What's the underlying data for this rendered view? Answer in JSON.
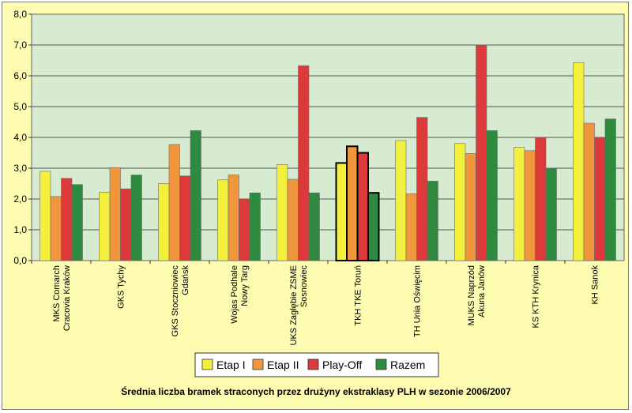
{
  "chart_data": {
    "type": "bar",
    "title": "Średnia liczba bramek straconych przez drużyny ekstraklasy PLH w sezonie 2006/2007",
    "ylim": [
      0,
      8
    ],
    "ytick_labels": [
      "0,0",
      "1,0",
      "2,0",
      "3,0",
      "4,0",
      "5,0",
      "6,0",
      "7,0",
      "8,0"
    ],
    "grid": true,
    "legend_position": "bottom",
    "categories": [
      [
        "MKS Comarch",
        "Cracovia Kraków"
      ],
      [
        "GKS Tychy"
      ],
      [
        "GKS Stoczniowiec",
        "Gdańsk"
      ],
      [
        "Wojas Podhale",
        "Nowy Targ"
      ],
      [
        "UKS Zagłębie ZSME",
        "Sosnowiec"
      ],
      [
        "TKH TKE Toruń"
      ],
      [
        "TH Unia Oświęcim"
      ],
      [
        "MUKS Naprzód",
        "Akuna Janów"
      ],
      [
        "KS KTH Krynica"
      ],
      [
        "KH Sanok"
      ]
    ],
    "highlight_index": 5,
    "series": [
      {
        "name": "Etap I",
        "color": "#f2f03c",
        "values": [
          2.9,
          2.22,
          2.5,
          2.62,
          3.12,
          3.17,
          3.9,
          3.8,
          3.68,
          6.43
        ]
      },
      {
        "name": "Etap II",
        "color": "#f0963c",
        "values": [
          2.08,
          3.02,
          3.77,
          2.78,
          2.64,
          3.71,
          2.17,
          3.48,
          3.57,
          4.46
        ]
      },
      {
        "name": "Play-Off",
        "color": "#dc3a3a",
        "values": [
          2.67,
          2.33,
          2.75,
          2.0,
          6.33,
          3.5,
          4.65,
          7.0,
          4.0,
          4.0
        ]
      },
      {
        "name": "Razem",
        "color": "#2e8a3e",
        "values": [
          2.47,
          2.78,
          4.22,
          2.2,
          2.2,
          2.2,
          2.58,
          4.22,
          3.0,
          4.6
        ]
      }
    ]
  }
}
